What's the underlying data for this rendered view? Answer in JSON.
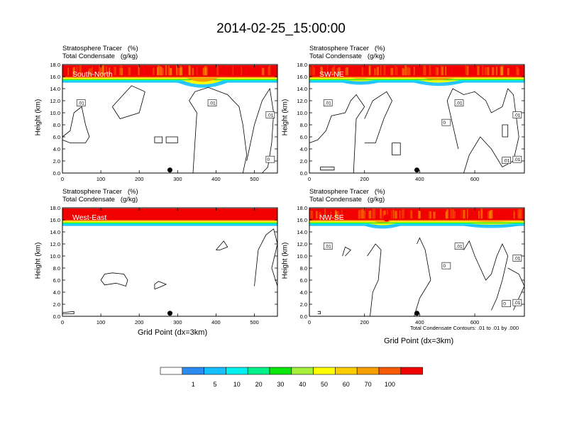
{
  "title": "2014-02-25_15:00:00",
  "panels": [
    {
      "name": "South-North",
      "cap1": "Stratosphere Tracer   (%)",
      "cap2": "Total Condensate   (g/kg)",
      "xticks": [
        "0",
        "100",
        "200",
        "300",
        "400",
        "500"
      ],
      "xmax": 560,
      "ylabel": "Height (km)",
      "marker_x": 280,
      "contour_labels": [
        ".01",
        ".01",
        ".01",
        "0"
      ]
    },
    {
      "name": "SW-NE",
      "cap1": "Stratosphere Tracer   (%)",
      "cap2": "Total Condensate   (g/kg)",
      "xticks": [
        "0",
        "200",
        "400",
        "600"
      ],
      "xmax": 780,
      "ylabel": "Height (km)",
      "marker_x": 390,
      "contour_labels": [
        ".01",
        ".01",
        ".01",
        ".01",
        "0",
        ".01"
      ]
    },
    {
      "name": "West-East",
      "cap1": "Stratosphere Tracer   (%)",
      "cap2": "Total Condensate   (g/kg)",
      "xticks": [
        "0",
        "100",
        "200",
        "300",
        "400",
        "500"
      ],
      "xmax": 560,
      "ylabel": "Height (km)",
      "marker_x": 280,
      "xlabel": "Grid Point (dx=3km)",
      "contour_labels": []
    },
    {
      "name": "NW-SE",
      "cap1": "Stratosphere Tracer   (%)",
      "cap2": "Total Condensate   (g/kg)",
      "xticks": [
        "0",
        "200",
        "400",
        "600"
      ],
      "xmax": 780,
      "ylabel": "Height (km)",
      "marker_x": 390,
      "xlabel": "Grid Point (dx=3km)",
      "contour_labels": [
        ".01",
        ".01",
        ".01",
        ".01",
        "0",
        "0"
      ]
    }
  ],
  "yticks": [
    "0.0",
    "2.0",
    "4.0",
    "6.0",
    "8.0",
    "10.0",
    "12.0",
    "14.0",
    "16.0",
    "18.0"
  ],
  "contour_note": "Total Condensate Contours: .01 to .01 by .000",
  "colorbar": {
    "labels": [
      "1",
      "5",
      "10",
      "20",
      "30",
      "40",
      "50",
      "60",
      "70",
      "100"
    ],
    "colors": [
      "#ffffff",
      "#2a8cf0",
      "#16bfff",
      "#00f0f0",
      "#00f08c",
      "#0ae60a",
      "#a6f03c",
      "#ffff00",
      "#fbcd00",
      "#f5a000",
      "#f55a00",
      "#f00000"
    ]
  },
  "chart_data": [
    {
      "type": "heatmap",
      "title": "South-North",
      "ylabel": "Height (km)",
      "ylim": [
        0,
        18
      ],
      "xlim": [
        0,
        560
      ],
      "legend": "bottom"
    },
    {
      "type": "heatmap",
      "title": "SW-NE",
      "ylabel": "Height (km)",
      "ylim": [
        0,
        18
      ],
      "xlim": [
        0,
        780
      ],
      "legend": "bottom"
    },
    {
      "type": "heatmap",
      "title": "West-East",
      "xlabel": "Grid Point (dx=3km)",
      "ylabel": "Height (km)",
      "ylim": [
        0,
        18
      ],
      "xlim": [
        0,
        560
      ],
      "legend": "bottom"
    },
    {
      "type": "heatmap",
      "title": "NW-SE",
      "xlabel": "Grid Point (dx=3km)",
      "ylabel": "Height (km)",
      "ylim": [
        0,
        18
      ],
      "xlim": [
        0,
        780
      ],
      "legend": "bottom"
    }
  ]
}
